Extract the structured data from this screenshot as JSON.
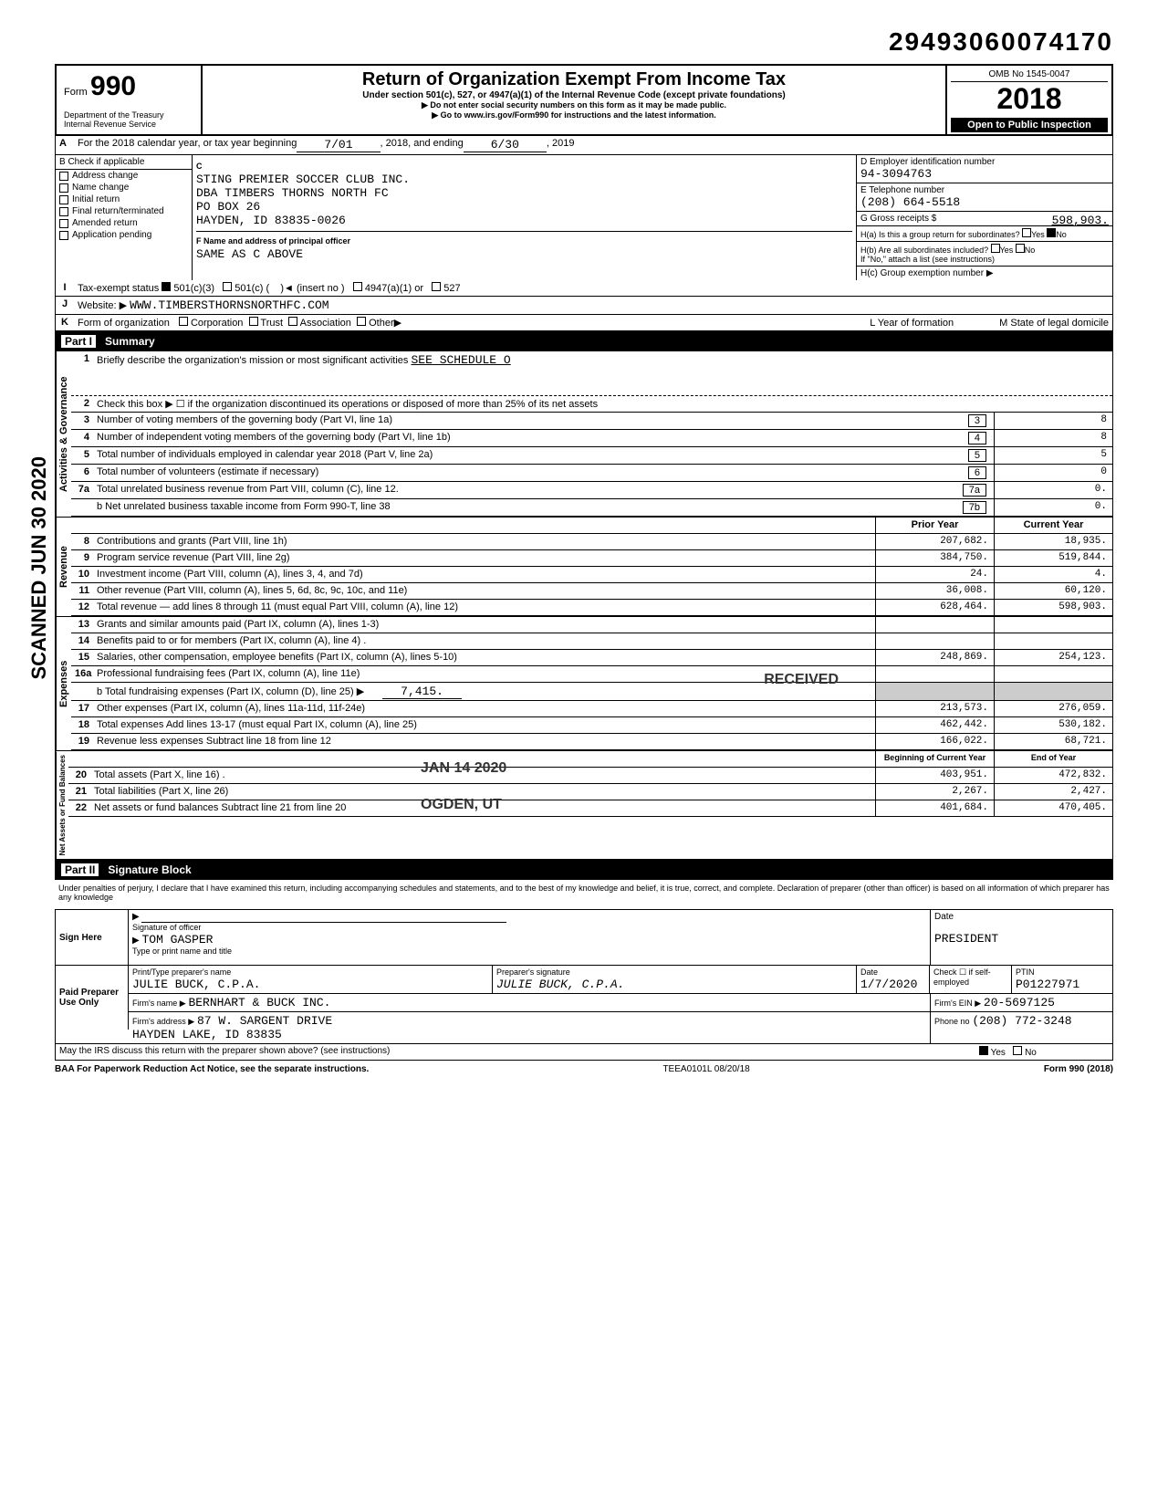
{
  "top_number": "29493060074170",
  "header": {
    "form_label": "Form",
    "form_num": "990",
    "dept": "Department of the Treasury\nInternal Revenue Service",
    "title": "Return of Organization Exempt From Income Tax",
    "subtitle": "Under section 501(c), 527, or 4947(a)(1) of the Internal Revenue Code (except private foundations)",
    "note1": "▶ Do not enter social security numbers on this form as it may be made public.",
    "note2": "▶ Go to www.irs.gov/Form990 for instructions and the latest information.",
    "omb": "OMB No 1545-0047",
    "year": "2018",
    "open": "Open to Public Inspection"
  },
  "lineA": {
    "label": "A",
    "text": "For the 2018 calendar year, or tax year beginning",
    "begin": "7/01",
    "mid": ", 2018, and ending",
    "end": "6/30",
    "tail": ", 2019"
  },
  "sectionB": {
    "hdr": "B  Check if applicable",
    "items": [
      "Address change",
      "Name change",
      "Initial return",
      "Final return/terminated",
      "Amended return",
      "Application pending"
    ]
  },
  "sectionC": {
    "hdr": "C",
    "name1": "STING PREMIER SOCCER CLUB INC.",
    "name2": "DBA TIMBERS THORNS NORTH FC",
    "addr1": "PO BOX 26",
    "addr2": "HAYDEN, ID 83835-0026",
    "officer_lbl": "F Name and address of principal officer",
    "officer": "SAME AS C ABOVE"
  },
  "sectionD": {
    "d_lbl": "D Employer identification number",
    "d_val": "94-3094763",
    "e_lbl": "E Telephone number",
    "e_val": "(208) 664-5518",
    "g_lbl": "G Gross receipts $",
    "g_val": "598,903.",
    "ha_lbl": "H(a) Is this a group return for subordinates?",
    "ha_yes": "Yes",
    "ha_no": "No",
    "hb_lbl": "H(b) Are all subordinates included?",
    "hb_note": "If \"No,\" attach a list (see instructions)",
    "hc_lbl": "H(c) Group exemption number ▶"
  },
  "lineI": {
    "lbl": "I",
    "text": "Tax-exempt status",
    "opt1": "501(c)(3)",
    "opt2": "501(c) (",
    "insert": ")◄ (insert no )",
    "opt3": "4947(a)(1) or",
    "opt4": "527"
  },
  "lineJ": {
    "lbl": "J",
    "text": "Website: ▶",
    "val": "WWW.TIMBERSTHORNSNORTHFC.COM"
  },
  "lineK": {
    "lbl": "K",
    "text": "Form of organization",
    "opts": [
      "Corporation",
      "Trust",
      "Association",
      "Other▶"
    ],
    "yof": "L Year of formation",
    "state": "M State of legal domicile"
  },
  "part1_title": "Part I",
  "part1_sub": "Summary",
  "gov": {
    "label": "Activities & Governance",
    "l1": "Briefly describe the organization's mission or most significant activities",
    "l1val": "SEE SCHEDULE O",
    "l2": "Check this box ▶ ☐ if the organization discontinued its operations or disposed of more than 25% of its net assets",
    "rows": [
      {
        "n": "3",
        "t": "Number of voting members of the governing body (Part VI, line 1a)",
        "c": "3",
        "v": "8"
      },
      {
        "n": "4",
        "t": "Number of independent voting members of the governing body (Part VI, line 1b)",
        "c": "4",
        "v": "8"
      },
      {
        "n": "5",
        "t": "Total number of individuals employed in calendar year 2018 (Part V, line 2a)",
        "c": "5",
        "v": "5"
      },
      {
        "n": "6",
        "t": "Total number of volunteers (estimate if necessary)",
        "c": "6",
        "v": "0"
      },
      {
        "n": "7a",
        "t": "Total unrelated business revenue from Part VIII, column (C), line 12.",
        "c": "7a",
        "v": "0."
      },
      {
        "n": "",
        "t": "b Net unrelated business taxable income from Form 990-T, line 38",
        "c": "7b",
        "v": "0."
      }
    ]
  },
  "rev": {
    "label": "Revenue",
    "hdr_prior": "Prior Year",
    "hdr_curr": "Current Year",
    "rows": [
      {
        "n": "8",
        "t": "Contributions and grants (Part VIII, line 1h)",
        "p": "207,682.",
        "c": "18,935."
      },
      {
        "n": "9",
        "t": "Program service revenue (Part VIII, line 2g)",
        "p": "384,750.",
        "c": "519,844."
      },
      {
        "n": "10",
        "t": "Investment income (Part VIII, column (A), lines 3, 4, and 7d)",
        "p": "24.",
        "c": "4."
      },
      {
        "n": "11",
        "t": "Other revenue (Part VIII, column (A), lines 5, 6d, 8c, 9c, 10c, and 11e)",
        "p": "36,008.",
        "c": "60,120."
      },
      {
        "n": "12",
        "t": "Total revenue — add lines 8 through 11 (must equal Part VIII, column (A), line 12)",
        "p": "628,464.",
        "c": "598,903."
      }
    ]
  },
  "exp": {
    "label": "Expenses",
    "rows": [
      {
        "n": "13",
        "t": "Grants and similar amounts paid (Part IX, column (A), lines 1-3)",
        "p": "",
        "c": ""
      },
      {
        "n": "14",
        "t": "Benefits paid to or for members (Part IX, column (A), line 4) .",
        "p": "",
        "c": ""
      },
      {
        "n": "15",
        "t": "Salaries, other compensation, employee benefits (Part IX, column (A), lines 5-10)",
        "p": "248,869.",
        "c": "254,123."
      },
      {
        "n": "16a",
        "t": "Professional fundraising fees (Part IX, column (A), line 11e)",
        "p": "",
        "c": ""
      },
      {
        "n": "",
        "t": "b Total fundraising expenses (Part IX, column (D), line 25) ▶",
        "p": "",
        "c": "",
        "inline": "7,415."
      },
      {
        "n": "17",
        "t": "Other expenses (Part IX, column (A), lines 11a-11d, 11f-24e)",
        "p": "213,573.",
        "c": "276,059."
      },
      {
        "n": "18",
        "t": "Total expenses Add lines 13-17 (must equal Part IX, column (A), line 25)",
        "p": "462,442.",
        "c": "530,182."
      },
      {
        "n": "19",
        "t": "Revenue less expenses Subtract line 18 from line 12",
        "p": "166,022.",
        "c": "68,721."
      }
    ]
  },
  "net": {
    "label": "Net Assets or Fund Balances",
    "hdr_begin": "Beginning of Current Year",
    "hdr_end": "End of Year",
    "rows": [
      {
        "n": "20",
        "t": "Total assets (Part X, line 16) .",
        "p": "403,951.",
        "c": "472,832."
      },
      {
        "n": "21",
        "t": "Total liabilities (Part X, line 26)",
        "p": "2,267.",
        "c": "2,427."
      },
      {
        "n": "22",
        "t": "Net assets or fund balances Subtract line 21 from line 20",
        "p": "401,684.",
        "c": "470,405."
      }
    ]
  },
  "part2_title": "Part II",
  "part2_sub": "Signature Block",
  "perjury": "Under penalties of perjury, I declare that I have examined this return, including accompanying schedules and statements, and to the best of my knowledge and belief, it is true, correct, and complete. Declaration of preparer (other than officer) is based on all information of which preparer has any knowledge",
  "sign": {
    "here": "Sign Here",
    "sig_lbl": "Signature of officer",
    "date_lbl": "Date",
    "name": "TOM GASPER",
    "title": "PRESIDENT",
    "name_lbl": "Type or print name and title"
  },
  "prep": {
    "here": "Paid Preparer Use Only",
    "name_lbl": "Print/Type preparer's name",
    "name": "JULIE BUCK, C.P.A.",
    "sig_lbl": "Preparer's signature",
    "sig": "JULIE BUCK, C.P.A.",
    "date_lbl": "Date",
    "date": "1/7/2020",
    "check_lbl": "Check ☐ if self-employed",
    "ptin_lbl": "PTIN",
    "ptin": "P01227971",
    "firm_lbl": "Firm's name ▶",
    "firm": "BERNHART & BUCK INC.",
    "addr_lbl": "Firm's address ▶",
    "addr": "87 W. SARGENT DRIVE\nHAYDEN LAKE, ID 83835",
    "ein_lbl": "Firm's EIN ▶",
    "ein": "20-5697125",
    "phone_lbl": "Phone no",
    "phone": "(208) 772-3248"
  },
  "discuss": "May the IRS discuss this return with the preparer shown above? (see instructions)",
  "discuss_yes": "Yes",
  "discuss_no": "No",
  "footer": {
    "left": "BAA For Paperwork Reduction Act Notice, see the separate instructions.",
    "mid": "TEEA0101L 08/20/18",
    "right": "Form 990 (2018)"
  },
  "stamps": {
    "received": "RECEIVED",
    "date": "JAN 14 2020",
    "ogden": "OGDEN, UT",
    "scanned": "SCANNED JUN 30 2020"
  },
  "colors": {
    "text": "#000000",
    "bg": "#ffffff",
    "shade": "#cccccc",
    "inverse_bg": "#000000",
    "inverse_fg": "#ffffff"
  }
}
